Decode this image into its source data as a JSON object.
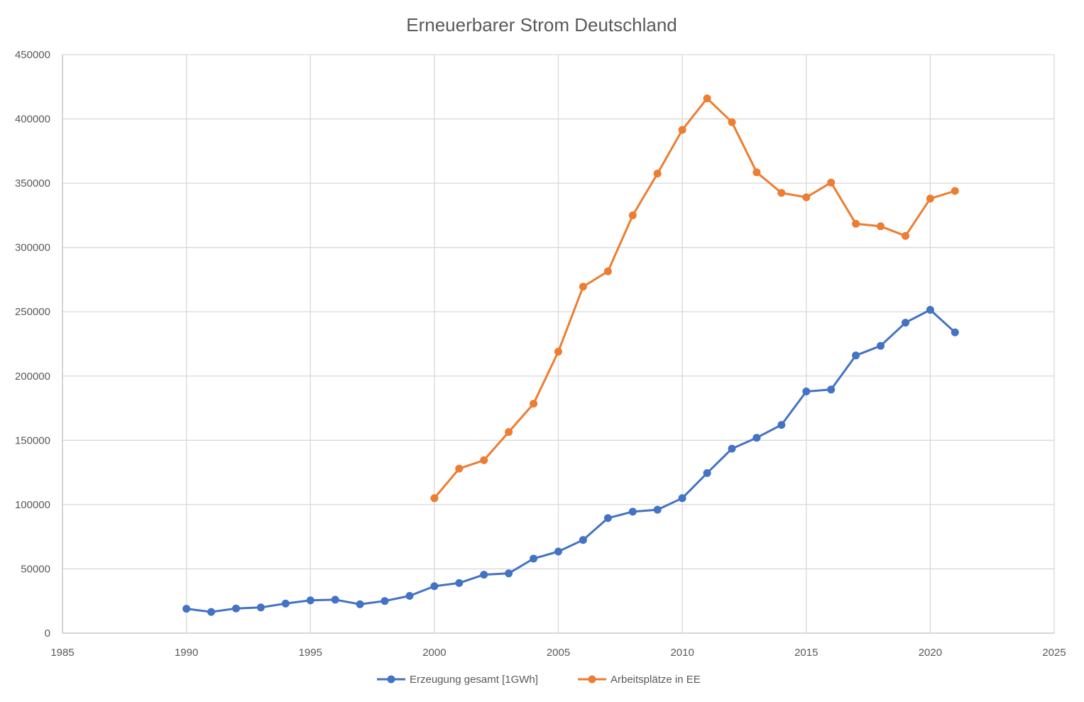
{
  "chart_data": {
    "type": "line",
    "title": "Erneuerbarer  Strom Deutschland",
    "xlabel": "",
    "ylabel": "",
    "xlim": [
      1985,
      2025
    ],
    "ylim": [
      0,
      450000
    ],
    "x_ticks": [
      1985,
      1990,
      1995,
      2000,
      2005,
      2010,
      2015,
      2020,
      2025
    ],
    "y_ticks": [
      0,
      50000,
      100000,
      150000,
      200000,
      250000,
      300000,
      350000,
      400000,
      450000
    ],
    "grid": true,
    "legend_position": "bottom",
    "series": [
      {
        "name": "Erzeugung gesamt [1GWh]",
        "color": "#4472c4",
        "points": [
          [
            1990,
            19000
          ],
          [
            1991,
            16500
          ],
          [
            1992,
            19200
          ],
          [
            1993,
            20000
          ],
          [
            1994,
            23000
          ],
          [
            1995,
            25500
          ],
          [
            1996,
            26000
          ],
          [
            1997,
            22500
          ],
          [
            1998,
            25000
          ],
          [
            1999,
            29000
          ],
          [
            2000,
            36500
          ],
          [
            2001,
            39000
          ],
          [
            2002,
            45500
          ],
          [
            2003,
            46500
          ],
          [
            2004,
            58000
          ],
          [
            2005,
            63500
          ],
          [
            2006,
            72500
          ],
          [
            2007,
            89500
          ],
          [
            2008,
            94500
          ],
          [
            2009,
            96000
          ],
          [
            2010,
            105000
          ],
          [
            2011,
            124500
          ],
          [
            2012,
            143500
          ],
          [
            2013,
            152000
          ],
          [
            2014,
            162000
          ],
          [
            2015,
            188000
          ],
          [
            2016,
            189500
          ],
          [
            2017,
            216000
          ],
          [
            2018,
            223500
          ],
          [
            2019,
            241500
          ],
          [
            2020,
            251500
          ],
          [
            2021,
            234000
          ]
        ]
      },
      {
        "name": "Arbeitsplätze in EE",
        "color": "#ed7d31",
        "points": [
          [
            2000,
            105000
          ],
          [
            2001,
            128000
          ],
          [
            2002,
            134500
          ],
          [
            2003,
            156500
          ],
          [
            2004,
            178500
          ],
          [
            2005,
            219000
          ],
          [
            2006,
            269500
          ],
          [
            2007,
            281500
          ],
          [
            2008,
            325000
          ],
          [
            2009,
            357500
          ],
          [
            2010,
            391500
          ],
          [
            2011,
            416000
          ],
          [
            2012,
            397500
          ],
          [
            2013,
            358500
          ],
          [
            2014,
            342500
          ],
          [
            2015,
            339000
          ],
          [
            2016,
            350500
          ],
          [
            2017,
            318500
          ],
          [
            2018,
            316500
          ],
          [
            2019,
            309000
          ],
          [
            2020,
            338000
          ],
          [
            2021,
            344000
          ]
        ]
      }
    ]
  }
}
